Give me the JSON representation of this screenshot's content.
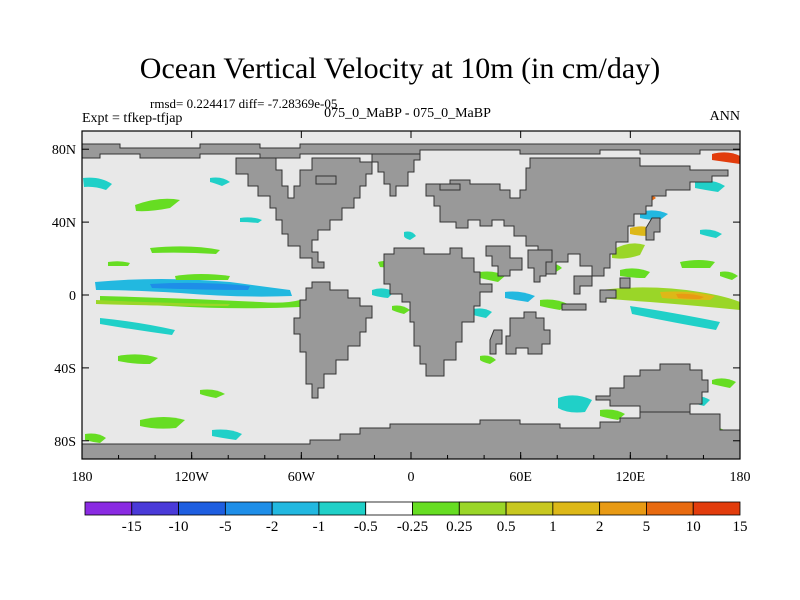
{
  "title": "Ocean Vertical Velocity at 10m (in cm/day)",
  "stats": "rmsd= 0.224417  diff= -7.28369e-05",
  "expt": "Expt = tfkep-tfjap",
  "cases": "075_0_MaBP - 075_0_MaBP",
  "season": "ANN",
  "map": {
    "lon_range": [
      -180,
      180
    ],
    "lat_range": [
      -90,
      90
    ],
    "land_color": "#999999",
    "ocean_color": "#e8e8e8",
    "lat_ticks": [
      {
        "value": 80,
        "label": "80N"
      },
      {
        "value": 40,
        "label": "40N"
      },
      {
        "value": 0,
        "label": "0"
      },
      {
        "value": -40,
        "label": "40S"
      },
      {
        "value": -80,
        "label": "80S"
      }
    ],
    "lon_ticks": [
      {
        "value": -180,
        "label": "180"
      },
      {
        "value": -120,
        "label": "120W"
      },
      {
        "value": -60,
        "label": "60W"
      },
      {
        "value": 0,
        "label": "0"
      },
      {
        "value": 60,
        "label": "60E"
      },
      {
        "value": 120,
        "label": "120E"
      },
      {
        "value": 180,
        "label": "180"
      }
    ]
  },
  "colorbar": {
    "colors": [
      "#8a2be2",
      "#4a3ad8",
      "#1e5ee0",
      "#1e8ee8",
      "#22b8e0",
      "#20d0c8",
      "#ffffff",
      "#66dd22",
      "#9ad628",
      "#c8c820",
      "#ddb818",
      "#e89a14",
      "#e86a10",
      "#e23c0c"
    ],
    "labels": [
      "-15",
      "-10",
      "-5",
      "-2",
      "-1",
      "-0.5",
      "-0.25",
      "0.25",
      "0.5",
      "1",
      "2",
      "5",
      "10",
      "15"
    ]
  }
}
